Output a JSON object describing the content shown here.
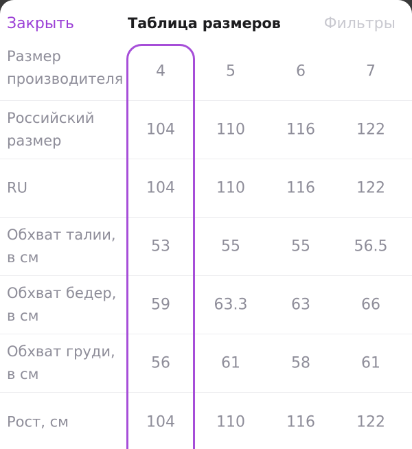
{
  "header": {
    "close_label": "Закрыть",
    "title": "Таблица размеров",
    "filters_label": "Фильтры"
  },
  "colors": {
    "accent": "#9b3fd6",
    "highlight_border": "#a64ed8",
    "text_muted": "#8e8d99",
    "title": "#1d1d1f",
    "disabled": "#c9c9d0"
  },
  "table": {
    "rows": [
      {
        "label": "Размер производителя",
        "values": [
          "4",
          "5",
          "6",
          "7"
        ]
      },
      {
        "label": "Российский размер",
        "values": [
          "104",
          "110",
          "116",
          "122"
        ]
      },
      {
        "label": "RU",
        "values": [
          "104",
          "110",
          "116",
          "122"
        ]
      },
      {
        "label": "Обхват талии, в см",
        "values": [
          "53",
          "55",
          "55",
          "56.5"
        ]
      },
      {
        "label": "Обхват бедер, в см",
        "values": [
          "59",
          "63.3",
          "63",
          "66"
        ]
      },
      {
        "label": "Обхват груди, в см",
        "values": [
          "56",
          "61",
          "58",
          "61"
        ]
      },
      {
        "label": "Рост, см",
        "values": [
          "104",
          "110",
          "116",
          "122"
        ]
      }
    ],
    "selected_column": "4"
  }
}
